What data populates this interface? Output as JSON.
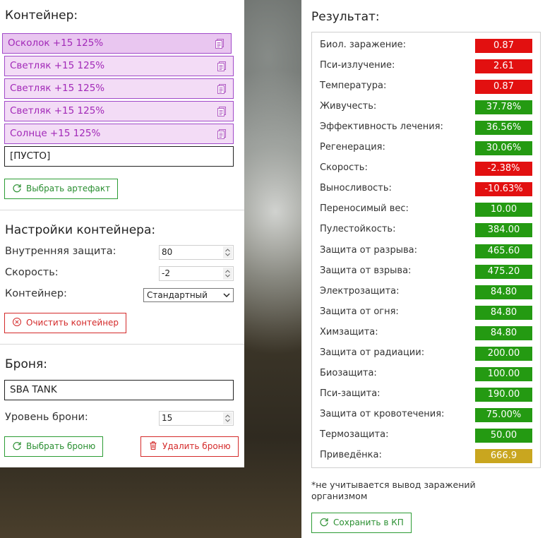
{
  "container": {
    "title": "Контейнер:",
    "slots": [
      {
        "label": "Осколок +15 125%",
        "icon": "document-icon"
      },
      {
        "label": "Светляк +15 125%",
        "icon": "document-icon"
      },
      {
        "label": "Светляк +15 125%",
        "icon": "document-icon"
      },
      {
        "label": "Светляк +15 125%",
        "icon": "document-icon"
      },
      {
        "label": "Солнце +15 125%",
        "icon": "document-icon"
      }
    ],
    "empty_slot": "[ПУСТО]",
    "select_artifact_label": "Выбрать артефакт"
  },
  "settings": {
    "title": "Настройки контейнера:",
    "internal_protection_label": "Внутренняя защита:",
    "internal_protection_value": "80",
    "speed_label": "Скорость:",
    "speed_value": "-2",
    "container_label": "Контейнер:",
    "container_value": "Стандартный",
    "clear_label": "Очистить контейнер"
  },
  "armor": {
    "title": "Броня:",
    "name": "SBA TANK",
    "level_label": "Уровень брони:",
    "level_value": "15",
    "select_label": "Выбрать броню",
    "delete_label": "Удалить броню"
  },
  "result": {
    "title": "Результат:",
    "stats": [
      {
        "label": "Биол. заражение:",
        "value": "0.87",
        "status": "bad"
      },
      {
        "label": "Пси-излучение:",
        "value": "2.61",
        "status": "bad"
      },
      {
        "label": "Температура:",
        "value": "0.87",
        "status": "bad"
      },
      {
        "label": "Живучесть:",
        "value": "37.78%",
        "status": "good"
      },
      {
        "label": "Эффективность лечения:",
        "value": "36.56%",
        "status": "good"
      },
      {
        "label": "Регенерация:",
        "value": "30.06%",
        "status": "good"
      },
      {
        "label": "Скорость:",
        "value": "-2.38%",
        "status": "bad"
      },
      {
        "label": "Выносливость:",
        "value": "-10.63%",
        "status": "bad"
      },
      {
        "label": "Переносимый вес:",
        "value": "10.00",
        "status": "good"
      },
      {
        "label": "Пулестойкость:",
        "value": "384.00",
        "status": "good"
      },
      {
        "label": "Защита от разрыва:",
        "value": "465.60",
        "status": "good"
      },
      {
        "label": "Защита от взрыва:",
        "value": "475.20",
        "status": "good"
      },
      {
        "label": "Электрозащита:",
        "value": "84.80",
        "status": "good"
      },
      {
        "label": "Защита от огня:",
        "value": "84.80",
        "status": "good"
      },
      {
        "label": "Химзащита:",
        "value": "84.80",
        "status": "good"
      },
      {
        "label": "Защита от радиации:",
        "value": "200.00",
        "status": "good"
      },
      {
        "label": "Биозащита:",
        "value": "100.00",
        "status": "good"
      },
      {
        "label": "Пси-защита:",
        "value": "190.00",
        "status": "good"
      },
      {
        "label": "Защита от кровотечения:",
        "value": "75.00%",
        "status": "good"
      },
      {
        "label": "Термозащита:",
        "value": "50.00",
        "status": "good"
      },
      {
        "label": "Приведёнка:",
        "value": "666.9",
        "status": "summary"
      }
    ],
    "note": "*не учитывается вывод заражений организмом",
    "save_label": "Сохранить в КП"
  },
  "colors": {
    "good": "#249a12",
    "bad": "#e21010",
    "summary": "#c9a61f",
    "accent_purple": "#a229b8",
    "button_green": "#2a8f31",
    "button_red": "#d42a2a"
  }
}
